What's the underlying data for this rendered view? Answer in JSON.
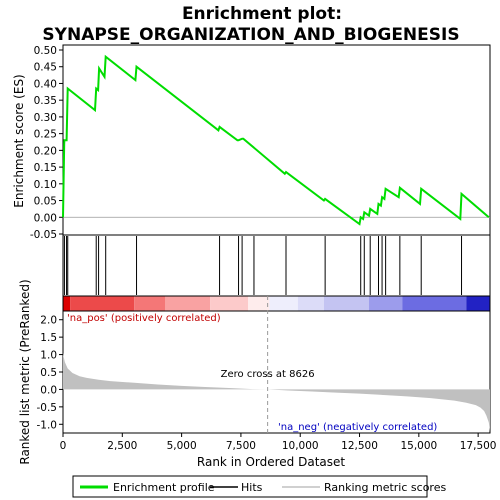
{
  "chart_data": {
    "type": "line",
    "title_line1": "Enrichment plot:",
    "title_line2": "SYNAPSE_ORGANIZATION_AND_BIOGENESIS",
    "top_panel": {
      "ylabel": "Enrichment score (ES)",
      "ylim": [
        -0.05,
        0.5
      ],
      "yticks": [
        "0.50",
        "0.45",
        "0.40",
        "0.35",
        "0.30",
        "0.25",
        "0.20",
        "0.15",
        "0.10",
        "0.05",
        "0.00",
        "-0.05"
      ],
      "ytick_values": [
        0.5,
        0.45,
        0.4,
        0.35,
        0.3,
        0.25,
        0.2,
        0.15,
        0.1,
        0.05,
        0.0,
        -0.05
      ],
      "es_curve": {
        "x": [
          0,
          50,
          60,
          150,
          200,
          1350,
          1400,
          1480,
          1520,
          1750,
          1800,
          3050,
          3100,
          6550,
          6600,
          7350,
          7400,
          7550,
          7600,
          9350,
          9400,
          11000,
          11050,
          12500,
          12550,
          12650,
          12700,
          12900,
          12950,
          13250,
          13300,
          13400,
          13450,
          13550,
          13600,
          14150,
          14200,
          15050,
          15100,
          16750,
          16800,
          17950
        ],
        "y": [
          0.0,
          0.22,
          0.23,
          0.23,
          0.385,
          0.32,
          0.385,
          0.38,
          0.445,
          0.42,
          0.48,
          0.41,
          0.45,
          0.26,
          0.27,
          0.23,
          0.23,
          0.235,
          0.235,
          0.13,
          0.135,
          0.05,
          0.055,
          -0.02,
          0.0,
          -0.005,
          0.015,
          0.005,
          0.025,
          0.01,
          0.04,
          0.035,
          0.06,
          0.055,
          0.085,
          0.06,
          0.088,
          0.04,
          0.085,
          -0.005,
          0.07,
          0.0
        ]
      }
    },
    "hits": [
      60,
      150,
      200,
      1400,
      1500,
      1800,
      3100,
      6600,
      7400,
      7550,
      8050,
      9400,
      11050,
      12550,
      12700,
      12950,
      13300,
      13450,
      13600,
      14200,
      15100,
      16800
    ],
    "band_colors": [
      {
        "from": 0,
        "to": 300,
        "color": "#dc0000"
      },
      {
        "from": 300,
        "to": 3000,
        "color": "#ec4a4a"
      },
      {
        "from": 3000,
        "to": 4300,
        "color": "#f47777"
      },
      {
        "from": 4300,
        "to": 6200,
        "color": "#f9a2a2"
      },
      {
        "from": 6200,
        "to": 7800,
        "color": "#fccaca"
      },
      {
        "from": 7800,
        "to": 8700,
        "color": "#feecec"
      },
      {
        "from": 8700,
        "to": 9900,
        "color": "#eeeefc"
      },
      {
        "from": 9900,
        "to": 11000,
        "color": "#dcdcf8"
      },
      {
        "from": 11000,
        "to": 12900,
        "color": "#c4c4f2"
      },
      {
        "from": 12900,
        "to": 14300,
        "color": "#9c9cec"
      },
      {
        "from": 14300,
        "to": 17000,
        "color": "#6c6ce2"
      },
      {
        "from": 17000,
        "to": 18000,
        "color": "#2222c4"
      }
    ],
    "bottom_panel": {
      "ylabel": "Ranked list metric (PreRanked)",
      "ylim": [
        -1.25,
        2.25
      ],
      "yticks": [
        "2.0",
        "1.5",
        "1.0",
        "0.5",
        "0.0",
        "-0.5",
        "-1.0"
      ],
      "ytick_values": [
        2.0,
        1.5,
        1.0,
        0.5,
        0.0,
        -0.5,
        -1.0
      ],
      "metric_curve": {
        "x": [
          0,
          20,
          80,
          200,
          400,
          700,
          1000,
          1500,
          2000,
          3000,
          4000,
          5000,
          6000,
          7000,
          8000,
          8626,
          9500,
          10500,
          11500,
          12500,
          13500,
          14500,
          15500,
          16500,
          17000,
          17400,
          17600,
          17750,
          17850,
          17950,
          18000
        ],
        "y": [
          1.05,
          0.95,
          0.78,
          0.6,
          0.47,
          0.38,
          0.33,
          0.28,
          0.24,
          0.19,
          0.14,
          0.1,
          0.07,
          0.04,
          0.01,
          0.0,
          -0.03,
          -0.06,
          -0.09,
          -0.12,
          -0.16,
          -0.2,
          -0.25,
          -0.32,
          -0.38,
          -0.45,
          -0.52,
          -0.62,
          -0.75,
          -0.95,
          -1.2
        ]
      },
      "label_pos": "'na_pos' (positively correlated)",
      "label_neg": "'na_neg' (negatively correlated)",
      "zero_cross_label": "Zero cross at 8626",
      "zero_cross": 8626
    },
    "xlabel": "Rank in Ordered Dataset",
    "xlim": [
      0,
      18000
    ],
    "xticks": [
      "0",
      "2,500",
      "5,000",
      "7,500",
      "10,000",
      "12,500",
      "15,000",
      "17,500"
    ],
    "xtick_values": [
      0,
      2500,
      5000,
      7500,
      10000,
      12500,
      15000,
      17500
    ],
    "legend": {
      "entries": [
        "Enrichment profile",
        "Hits",
        "Ranking metric scores"
      ],
      "colors": [
        "#00dd00",
        "#000000",
        "#c0c0c0"
      ],
      "placement": "bottom"
    }
  }
}
